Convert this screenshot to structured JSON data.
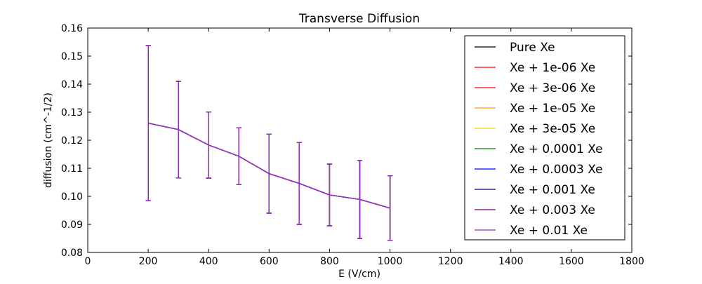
{
  "chart_data": {
    "type": "line",
    "title": "Transverse Diffusion",
    "xlabel": "E (V/cm)",
    "ylabel": "diffusion (cm^-1/2)",
    "xlim": [
      0,
      1800
    ],
    "ylim": [
      0.08,
      0.16
    ],
    "xticks": [
      0,
      200,
      400,
      600,
      800,
      1000,
      1200,
      1400,
      1600,
      1800
    ],
    "yticks": [
      0.08,
      0.09,
      0.1,
      0.11,
      0.12,
      0.13,
      0.14,
      0.15,
      0.16
    ],
    "xtick_labels": [
      "0",
      "200",
      "400",
      "600",
      "800",
      "1000",
      "1200",
      "1400",
      "1600",
      "1800"
    ],
    "ytick_labels": [
      "0.08",
      "0.09",
      "0.10",
      "0.11",
      "0.12",
      "0.13",
      "0.14",
      "0.15",
      "0.16"
    ],
    "grid": false,
    "legend_position": "upper right",
    "x": [
      200,
      300,
      400,
      500,
      600,
      700,
      800,
      900,
      1000
    ],
    "series": [
      {
        "name": "Pure Xe",
        "color": "#000000",
        "values": [
          0.1261,
          0.1238,
          0.1183,
          0.1143,
          0.1081,
          0.1046,
          0.1005,
          0.0989,
          0.0958
        ],
        "errors": [
          0.0277,
          0.0172,
          0.0118,
          0.0101,
          0.0141,
          0.0146,
          0.011,
          0.0139,
          0.0115
        ]
      },
      {
        "name": "Xe + 1e-06 Xe",
        "color": "#ff0000",
        "values": [
          0.1261,
          0.1238,
          0.1183,
          0.1143,
          0.1081,
          0.1046,
          0.1005,
          0.0989,
          0.0958
        ],
        "errors": [
          0.0277,
          0.0172,
          0.0118,
          0.0101,
          0.0141,
          0.0146,
          0.011,
          0.0139,
          0.0115
        ]
      },
      {
        "name": "Xe + 3e-06 Xe",
        "color": "#ff0000",
        "values": [
          0.1261,
          0.1238,
          0.1183,
          0.1143,
          0.1081,
          0.1046,
          0.1005,
          0.0989,
          0.0958
        ],
        "errors": [
          0.0277,
          0.0172,
          0.0118,
          0.0101,
          0.0141,
          0.0146,
          0.011,
          0.0139,
          0.0115
        ]
      },
      {
        "name": "Xe + 1e-05 Xe",
        "color": "#ffa500",
        "values": [
          0.1261,
          0.1238,
          0.1183,
          0.1143,
          0.1081,
          0.1046,
          0.1005,
          0.0989,
          0.0958
        ],
        "errors": [
          0.0277,
          0.0172,
          0.0118,
          0.0101,
          0.0141,
          0.0146,
          0.011,
          0.0139,
          0.0115
        ]
      },
      {
        "name": "Xe + 3e-05 Xe",
        "color": "#ffd700",
        "values": [
          0.1261,
          0.1238,
          0.1183,
          0.1143,
          0.1081,
          0.1046,
          0.1005,
          0.0989,
          0.0958
        ],
        "errors": [
          0.0277,
          0.0172,
          0.0118,
          0.0101,
          0.0141,
          0.0146,
          0.011,
          0.0139,
          0.0115
        ]
      },
      {
        "name": "Xe + 0.0001 Xe",
        "color": "#008000",
        "values": [
          0.1261,
          0.1238,
          0.1183,
          0.1143,
          0.1081,
          0.1046,
          0.1005,
          0.0989,
          0.0958
        ],
        "errors": [
          0.0277,
          0.0172,
          0.0118,
          0.0101,
          0.0141,
          0.0146,
          0.011,
          0.0139,
          0.0115
        ]
      },
      {
        "name": "Xe + 0.0003 Xe",
        "color": "#0000ff",
        "values": [
          0.1261,
          0.1238,
          0.1183,
          0.1143,
          0.1081,
          0.1046,
          0.1005,
          0.0989,
          0.0958
        ],
        "errors": [
          0.0277,
          0.0172,
          0.0118,
          0.0101,
          0.0141,
          0.0146,
          0.011,
          0.0139,
          0.0115
        ]
      },
      {
        "name": "Xe + 0.001 Xe",
        "color": "#00008b",
        "values": [
          0.1261,
          0.1238,
          0.1183,
          0.1143,
          0.1081,
          0.1046,
          0.1005,
          0.0989,
          0.0958
        ],
        "errors": [
          0.0277,
          0.0172,
          0.0118,
          0.0101,
          0.0141,
          0.0146,
          0.011,
          0.0139,
          0.0115
        ]
      },
      {
        "name": "Xe + 0.003 Xe",
        "color": "#800080",
        "values": [
          0.1261,
          0.1238,
          0.1183,
          0.1143,
          0.1081,
          0.1046,
          0.1005,
          0.0989,
          0.0958
        ],
        "errors": [
          0.0277,
          0.0172,
          0.0118,
          0.0101,
          0.0141,
          0.0146,
          0.011,
          0.0139,
          0.0115
        ]
      },
      {
        "name": "Xe + 0.01 Xe",
        "color": "#9932cc",
        "values": [
          0.1261,
          0.1238,
          0.1183,
          0.1143,
          0.1081,
          0.1046,
          0.1005,
          0.0989,
          0.0958
        ],
        "errors": [
          0.0277,
          0.0172,
          0.0118,
          0.0101,
          0.0141,
          0.0146,
          0.011,
          0.0139,
          0.0115
        ]
      }
    ]
  }
}
